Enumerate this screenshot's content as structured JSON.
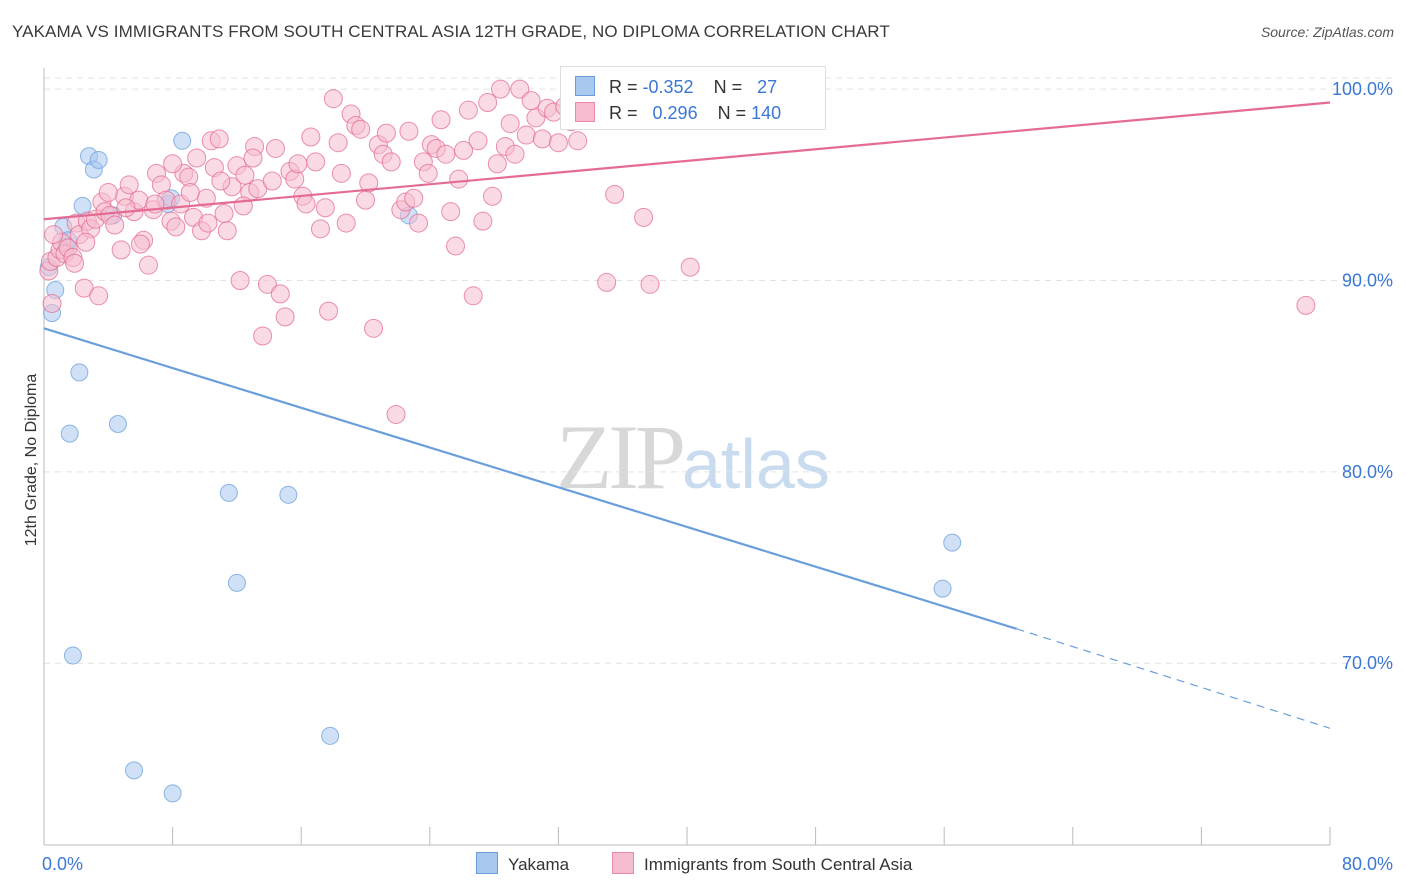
{
  "title": "YAKAMA VS IMMIGRANTS FROM SOUTH CENTRAL ASIA 12TH GRADE, NO DIPLOMA CORRELATION CHART",
  "source": "Source: ZipAtlas.com",
  "watermark": {
    "zip": "ZIP",
    "atlas": "atlas"
  },
  "legend_top": [
    {
      "r_label": "R =",
      "r_value": "-0.352",
      "n_label": "N =",
      "n_value": "27",
      "color": "#a9c8f0",
      "border": "#6a9fdc"
    },
    {
      "r_label": "R =",
      "r_value": "0.296",
      "n_label": "N =",
      "n_value": "140",
      "color": "#f6bdd0",
      "border": "#e98aab"
    }
  ],
  "legend_bottom": [
    {
      "label": "Yakama",
      "color": "#a9c8f0",
      "border": "#6a9fdc"
    },
    {
      "label": "Immigrants from South Central Asia",
      "color": "#f6bdd0",
      "border": "#e98aab"
    }
  ],
  "chart_data": {
    "type": "scatter",
    "title": "YAKAMA VS IMMIGRANTS FROM SOUTH CENTRAL ASIA 12TH GRADE, NO DIPLOMA CORRELATION CHART",
    "xlabel": "",
    "ylabel": "12th Grade, No Diploma",
    "xlim": [
      0,
      80
    ],
    "ylim": [
      60.5,
      101
    ],
    "x_ticks": [
      0,
      8,
      16,
      24,
      32,
      40,
      48,
      56,
      64,
      72,
      80
    ],
    "x_tick_labels": [
      "0.0%",
      "",
      "",
      "",
      "",
      "",
      "",
      "",
      "",
      "",
      "80.0%"
    ],
    "y_ticks": [
      70,
      80,
      90,
      100
    ],
    "y_tick_labels": [
      "70.0%",
      "80.0%",
      "90.0%",
      "100.0%"
    ],
    "grid": true,
    "series": [
      {
        "name": "Yakama",
        "color": "#6a9fdc",
        "fill": "#a9c8f0",
        "trend": {
          "x0": 0,
          "y0": 87.5,
          "x1": 60.5,
          "y1": 71.8,
          "dash_to_x": 80,
          "dash_to_y": 66.6
        },
        "points": [
          [
            0.3,
            90.7
          ],
          [
            0.5,
            88.3
          ],
          [
            0.7,
            89.5
          ],
          [
            1.2,
            92.8
          ],
          [
            1.4,
            91.8
          ],
          [
            1.5,
            92.1
          ],
          [
            1.6,
            82.0
          ],
          [
            1.8,
            70.4
          ],
          [
            2.2,
            85.2
          ],
          [
            2.4,
            93.9
          ],
          [
            2.8,
            96.5
          ],
          [
            3.1,
            95.8
          ],
          [
            3.4,
            96.3
          ],
          [
            4.3,
            93.4
          ],
          [
            4.6,
            82.5
          ],
          [
            5.6,
            64.4
          ],
          [
            7.7,
            94.0
          ],
          [
            7.9,
            94.3
          ],
          [
            8.0,
            63.2
          ],
          [
            8.6,
            97.3
          ],
          [
            11.5,
            78.9
          ],
          [
            12.0,
            74.2
          ],
          [
            15.2,
            78.8
          ],
          [
            17.8,
            66.2
          ],
          [
            22.7,
            93.4
          ],
          [
            56.5,
            76.3
          ],
          [
            55.9,
            73.9
          ]
        ]
      },
      {
        "name": "Immigrants from South Central Asia",
        "color": "#e46b93",
        "fill": "#f6bdd0",
        "trend": {
          "x0": 0,
          "y0": 93.2,
          "x1": 80,
          "y1": 99.3
        },
        "points": [
          [
            0.3,
            90.5
          ],
          [
            0.4,
            91.0
          ],
          [
            0.5,
            88.8
          ],
          [
            0.8,
            91.2
          ],
          [
            1.0,
            91.6
          ],
          [
            1.1,
            92.0
          ],
          [
            1.3,
            91.4
          ],
          [
            1.5,
            91.7
          ],
          [
            1.8,
            91.2
          ],
          [
            2.0,
            93.0
          ],
          [
            2.2,
            92.4
          ],
          [
            2.5,
            89.6
          ],
          [
            2.7,
            93.1
          ],
          [
            2.9,
            92.7
          ],
          [
            3.2,
            93.2
          ],
          [
            3.4,
            89.2
          ],
          [
            3.6,
            94.1
          ],
          [
            3.8,
            93.6
          ],
          [
            4.1,
            93.4
          ],
          [
            4.4,
            92.9
          ],
          [
            4.8,
            91.6
          ],
          [
            5.0,
            94.4
          ],
          [
            5.3,
            95.0
          ],
          [
            5.6,
            93.6
          ],
          [
            5.9,
            94.2
          ],
          [
            6.2,
            92.1
          ],
          [
            6.5,
            90.8
          ],
          [
            6.8,
            93.7
          ],
          [
            7.0,
            95.6
          ],
          [
            7.3,
            95.0
          ],
          [
            7.6,
            94.2
          ],
          [
            7.9,
            93.1
          ],
          [
            8.2,
            92.8
          ],
          [
            8.5,
            94.0
          ],
          [
            8.7,
            95.6
          ],
          [
            9.0,
            95.4
          ],
          [
            9.3,
            93.3
          ],
          [
            9.5,
            96.4
          ],
          [
            9.8,
            92.6
          ],
          [
            10.1,
            94.3
          ],
          [
            10.4,
            97.3
          ],
          [
            10.6,
            95.9
          ],
          [
            10.9,
            97.4
          ],
          [
            11.2,
            93.5
          ],
          [
            11.4,
            92.6
          ],
          [
            11.7,
            94.9
          ],
          [
            12.0,
            96.0
          ],
          [
            12.2,
            90.0
          ],
          [
            12.5,
            95.5
          ],
          [
            12.8,
            94.6
          ],
          [
            13.1,
            97.0
          ],
          [
            13.3,
            94.8
          ],
          [
            13.6,
            87.1
          ],
          [
            13.9,
            89.8
          ],
          [
            14.2,
            95.2
          ],
          [
            14.4,
            96.9
          ],
          [
            14.7,
            89.3
          ],
          [
            15.0,
            88.1
          ],
          [
            15.3,
            95.7
          ],
          [
            15.6,
            95.3
          ],
          [
            15.8,
            96.1
          ],
          [
            16.1,
            94.4
          ],
          [
            16.3,
            94.0
          ],
          [
            16.6,
            97.5
          ],
          [
            16.9,
            96.2
          ],
          [
            17.2,
            92.7
          ],
          [
            17.5,
            93.8
          ],
          [
            17.7,
            88.4
          ],
          [
            18.0,
            99.5
          ],
          [
            18.3,
            97.2
          ],
          [
            18.5,
            95.6
          ],
          [
            18.8,
            93.0
          ],
          [
            19.1,
            98.7
          ],
          [
            19.4,
            98.1
          ],
          [
            19.7,
            97.9
          ],
          [
            20.0,
            94.2
          ],
          [
            20.2,
            95.1
          ],
          [
            20.5,
            87.5
          ],
          [
            20.8,
            97.1
          ],
          [
            21.1,
            96.6
          ],
          [
            21.3,
            97.7
          ],
          [
            21.6,
            96.2
          ],
          [
            21.9,
            83.0
          ],
          [
            22.2,
            93.7
          ],
          [
            22.5,
            94.1
          ],
          [
            22.7,
            97.8
          ],
          [
            23.0,
            94.3
          ],
          [
            23.3,
            93.0
          ],
          [
            23.6,
            96.2
          ],
          [
            23.9,
            95.6
          ],
          [
            24.1,
            97.1
          ],
          [
            24.4,
            96.9
          ],
          [
            24.7,
            98.4
          ],
          [
            25.0,
            96.6
          ],
          [
            25.3,
            93.6
          ],
          [
            25.6,
            91.8
          ],
          [
            25.8,
            95.3
          ],
          [
            26.1,
            96.8
          ],
          [
            26.4,
            98.9
          ],
          [
            26.7,
            89.2
          ],
          [
            27.0,
            97.3
          ],
          [
            27.3,
            93.1
          ],
          [
            27.6,
            99.3
          ],
          [
            27.9,
            94.4
          ],
          [
            28.2,
            96.1
          ],
          [
            28.4,
            100.0
          ],
          [
            28.7,
            97.0
          ],
          [
            29.0,
            98.2
          ],
          [
            29.3,
            96.6
          ],
          [
            29.6,
            100.0
          ],
          [
            30.0,
            97.6
          ],
          [
            30.3,
            99.4
          ],
          [
            30.6,
            98.5
          ],
          [
            31.0,
            97.4
          ],
          [
            31.3,
            99.0
          ],
          [
            31.7,
            98.8
          ],
          [
            32.0,
            97.2
          ],
          [
            32.4,
            99.1
          ],
          [
            32.8,
            98.3
          ],
          [
            33.2,
            97.3
          ],
          [
            34.0,
            98.4
          ],
          [
            35.0,
            89.9
          ],
          [
            35.5,
            94.5
          ],
          [
            37.3,
            93.3
          ],
          [
            37.7,
            89.8
          ],
          [
            40.2,
            90.7
          ],
          [
            78.5,
            88.7
          ],
          [
            0.6,
            92.4
          ],
          [
            1.9,
            90.9
          ],
          [
            2.6,
            92.0
          ],
          [
            4.0,
            94.6
          ],
          [
            5.1,
            93.8
          ],
          [
            6.0,
            91.9
          ],
          [
            6.9,
            94.0
          ],
          [
            8.0,
            96.1
          ],
          [
            9.1,
            94.6
          ],
          [
            10.2,
            93.0
          ],
          [
            11.0,
            95.2
          ],
          [
            12.4,
            93.9
          ],
          [
            13.0,
            96.4
          ]
        ]
      }
    ]
  }
}
